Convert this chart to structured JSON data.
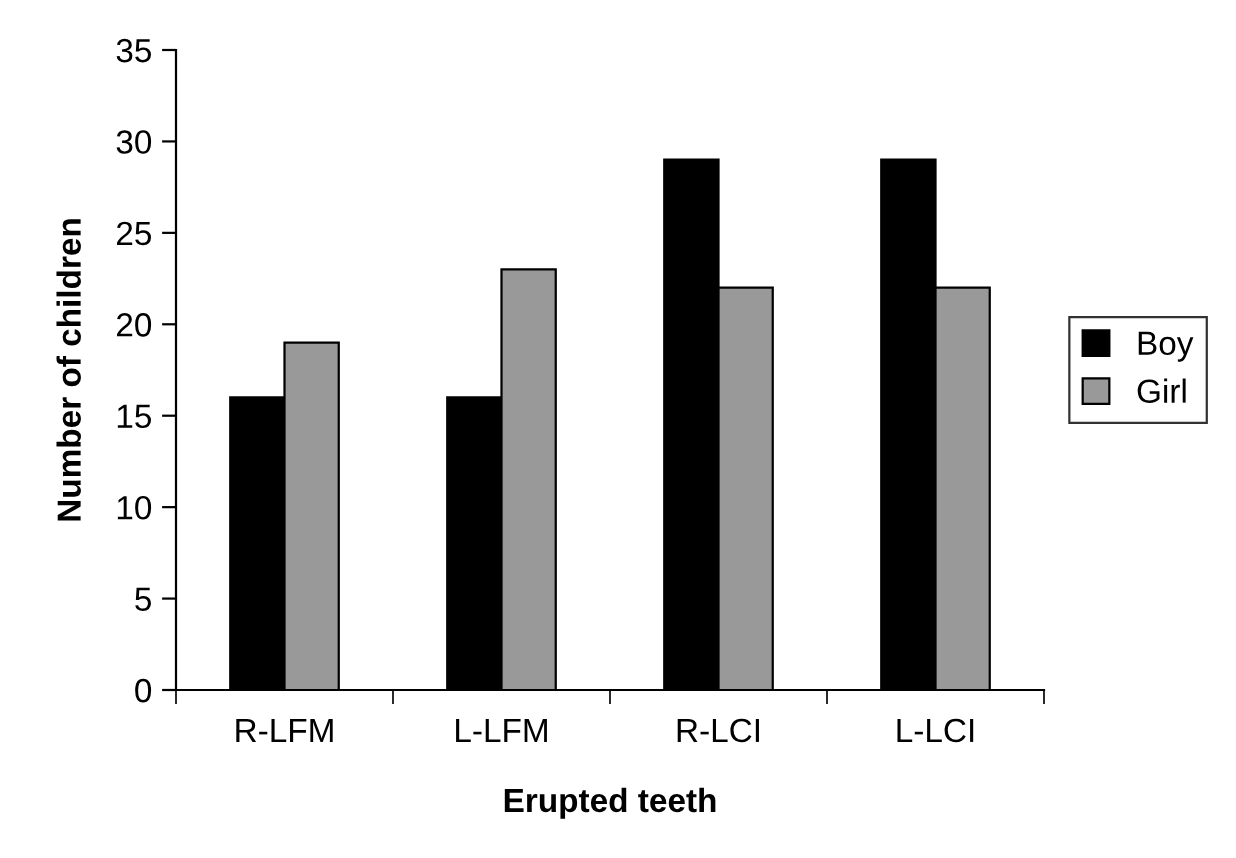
{
  "chart_data": {
    "type": "bar",
    "xlabel": "Erupted teeth",
    "ylabel": "Number of children",
    "categories": [
      "R-LFM",
      "L-LFM",
      "R-LCI",
      "L-LCI"
    ],
    "series": [
      {
        "name": "Boy",
        "color": "#000000",
        "values": [
          16,
          16,
          29,
          29
        ]
      },
      {
        "name": "Girl",
        "color": "#999999",
        "values": [
          19,
          23,
          22,
          22
        ]
      }
    ],
    "ylim": [
      0,
      35
    ],
    "yticks": [
      0,
      5,
      10,
      15,
      20,
      25,
      30,
      35
    ],
    "grid": false,
    "legend": "right"
  }
}
